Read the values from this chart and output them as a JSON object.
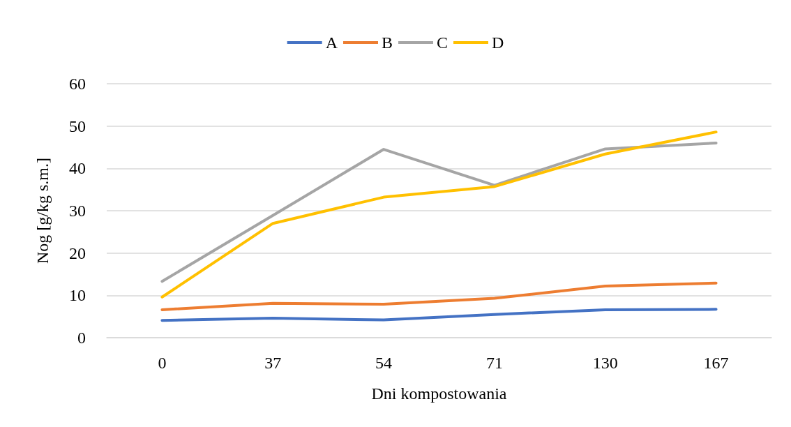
{
  "chart_data": {
    "type": "line",
    "xlabel": "Dni kompostowania",
    "ylabel": "Nog [g/kg s.m.]",
    "categories": [
      "0",
      "37",
      "54",
      "71",
      "130",
      "167"
    ],
    "series": [
      {
        "name": "A",
        "color": "#4472c4",
        "values": [
          4.1,
          4.6,
          4.2,
          5.5,
          6.6,
          6.7
        ]
      },
      {
        "name": "B",
        "color": "#ed7d31",
        "values": [
          6.6,
          8.1,
          7.9,
          9.3,
          12.2,
          12.9
        ]
      },
      {
        "name": "C",
        "color": "#a5a5a5",
        "values": [
          13.3,
          28.9,
          44.5,
          36,
          44.6,
          46
        ]
      },
      {
        "name": "D",
        "color": "#ffc000",
        "values": [
          9.6,
          27,
          33.2,
          35.7,
          43.4,
          48.6
        ]
      }
    ],
    "ylim": [
      0,
      60
    ],
    "yticks": [
      0,
      10,
      20,
      30,
      40,
      50,
      60
    ],
    "grid": "y",
    "legend": "top",
    "marker": "none",
    "line_style": "solid"
  }
}
